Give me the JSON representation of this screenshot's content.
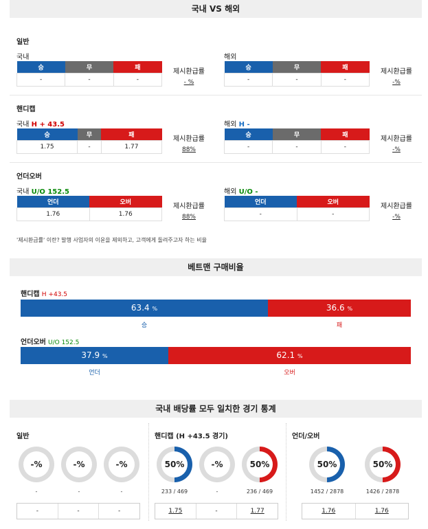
{
  "header1": "국내 VS 해외",
  "general": {
    "title": "일반",
    "domestic_label": "국내",
    "overseas_label": "해외",
    "cols": [
      "승",
      "무",
      "패"
    ],
    "domestic_vals": [
      "-",
      "-",
      "-"
    ],
    "overseas_vals": [
      "-",
      "-",
      "-"
    ],
    "rate_label": "제시환급률",
    "domestic_rate": "- %",
    "overseas_rate": "-%"
  },
  "handicap": {
    "title": "핸디캡",
    "domestic_label": "국내",
    "domestic_line": "H + 43.5",
    "overseas_label": "해외",
    "overseas_line": "H -",
    "cols": [
      "승",
      "무",
      "패"
    ],
    "domestic_vals": [
      "1.75",
      "-",
      "1.77"
    ],
    "overseas_vals": [
      "-",
      "-",
      "-"
    ],
    "rate_label": "제시환급률",
    "domestic_rate": "88%",
    "overseas_rate": "-%"
  },
  "overunder": {
    "title": "언더오버",
    "domestic_label": "국내",
    "domestic_line": "U/O 152.5",
    "overseas_label": "해외",
    "overseas_line": "U/O -",
    "cols": [
      "언더",
      "오버"
    ],
    "domestic_vals": [
      "1.76",
      "1.76"
    ],
    "overseas_vals": [
      "-",
      "-"
    ],
    "rate_label": "제시환급률",
    "domestic_rate": "88%",
    "overseas_rate": "-%"
  },
  "note": "'제시환급률' 이란? 발행 사업자의 이윤을 제외하고, 고객에게 돌려주고자 하는 비율",
  "header2": "베트맨 구매비율",
  "betting": {
    "handicap_title": "핸디캡",
    "handicap_line": "H +43.5",
    "handicap_win_pct": 63.4,
    "handicap_win_text": "63.4",
    "handicap_lose_pct": 36.6,
    "handicap_lose_text": "36.6",
    "pct_unit": "%",
    "win_label": "승",
    "lose_label": "패",
    "ou_title": "언더오버",
    "ou_line": "U/O 152.5",
    "under_pct": 37.9,
    "under_text": "37.9",
    "over_pct": 62.1,
    "over_text": "62.1",
    "under_label": "언더",
    "over_label": "오버"
  },
  "header3": "국내 배당률 모두 일치한 경기 통계",
  "stats": {
    "general_title": "일반",
    "handicap_title": "핸디캡 (H +43.5 경기)",
    "ou_title": "언더/오버",
    "general_rings": [
      "-%",
      "-%",
      "-%"
    ],
    "general_counts": [
      "-",
      "-",
      "-"
    ],
    "general_odds": [
      "-",
      "-",
      "-"
    ],
    "handicap_rings": [
      "50%",
      "-%",
      "50%"
    ],
    "handicap_counts": [
      "233 / 469",
      "-",
      "236 / 469"
    ],
    "handicap_odds": [
      "1.75",
      "-",
      "1.77"
    ],
    "ou_rings": [
      "50%",
      "50%"
    ],
    "ou_counts": [
      "1452 / 2878",
      "1426 / 2878"
    ],
    "ou_odds": [
      "1.76",
      "1.76"
    ]
  },
  "colors": {
    "blue": "#1960ac",
    "red": "#d71a1a",
    "gray": "#6b6b6b"
  }
}
